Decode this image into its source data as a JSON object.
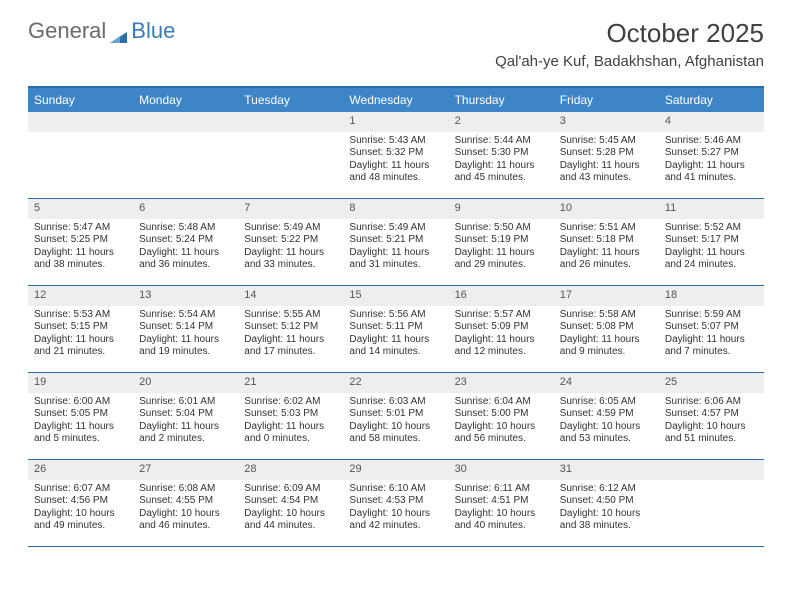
{
  "brand": {
    "part1": "General",
    "part2": "Blue"
  },
  "title": "October 2025",
  "location": "Qal'ah-ye Kuf, Badakhshan, Afghanistan",
  "colors": {
    "header_bg": "#3d85c6",
    "header_text": "#ffffff",
    "border": "#2a6ca8",
    "daynum_bg": "#eceeef",
    "text": "#333333",
    "brand_gray": "#6a6a6a",
    "brand_blue": "#3a7ab8"
  },
  "day_names": [
    "Sunday",
    "Monday",
    "Tuesday",
    "Wednesday",
    "Thursday",
    "Friday",
    "Saturday"
  ],
  "weeks": [
    [
      {
        "empty": true
      },
      {
        "empty": true
      },
      {
        "empty": true
      },
      {
        "n": "1",
        "sr": "5:43 AM",
        "ss": "5:32 PM",
        "dl": "11 hours and 48 minutes."
      },
      {
        "n": "2",
        "sr": "5:44 AM",
        "ss": "5:30 PM",
        "dl": "11 hours and 45 minutes."
      },
      {
        "n": "3",
        "sr": "5:45 AM",
        "ss": "5:28 PM",
        "dl": "11 hours and 43 minutes."
      },
      {
        "n": "4",
        "sr": "5:46 AM",
        "ss": "5:27 PM",
        "dl": "11 hours and 41 minutes."
      }
    ],
    [
      {
        "n": "5",
        "sr": "5:47 AM",
        "ss": "5:25 PM",
        "dl": "11 hours and 38 minutes."
      },
      {
        "n": "6",
        "sr": "5:48 AM",
        "ss": "5:24 PM",
        "dl": "11 hours and 36 minutes."
      },
      {
        "n": "7",
        "sr": "5:49 AM",
        "ss": "5:22 PM",
        "dl": "11 hours and 33 minutes."
      },
      {
        "n": "8",
        "sr": "5:49 AM",
        "ss": "5:21 PM",
        "dl": "11 hours and 31 minutes."
      },
      {
        "n": "9",
        "sr": "5:50 AM",
        "ss": "5:19 PM",
        "dl": "11 hours and 29 minutes."
      },
      {
        "n": "10",
        "sr": "5:51 AM",
        "ss": "5:18 PM",
        "dl": "11 hours and 26 minutes."
      },
      {
        "n": "11",
        "sr": "5:52 AM",
        "ss": "5:17 PM",
        "dl": "11 hours and 24 minutes."
      }
    ],
    [
      {
        "n": "12",
        "sr": "5:53 AM",
        "ss": "5:15 PM",
        "dl": "11 hours and 21 minutes."
      },
      {
        "n": "13",
        "sr": "5:54 AM",
        "ss": "5:14 PM",
        "dl": "11 hours and 19 minutes."
      },
      {
        "n": "14",
        "sr": "5:55 AM",
        "ss": "5:12 PM",
        "dl": "11 hours and 17 minutes."
      },
      {
        "n": "15",
        "sr": "5:56 AM",
        "ss": "5:11 PM",
        "dl": "11 hours and 14 minutes."
      },
      {
        "n": "16",
        "sr": "5:57 AM",
        "ss": "5:09 PM",
        "dl": "11 hours and 12 minutes."
      },
      {
        "n": "17",
        "sr": "5:58 AM",
        "ss": "5:08 PM",
        "dl": "11 hours and 9 minutes."
      },
      {
        "n": "18",
        "sr": "5:59 AM",
        "ss": "5:07 PM",
        "dl": "11 hours and 7 minutes."
      }
    ],
    [
      {
        "n": "19",
        "sr": "6:00 AM",
        "ss": "5:05 PM",
        "dl": "11 hours and 5 minutes."
      },
      {
        "n": "20",
        "sr": "6:01 AM",
        "ss": "5:04 PM",
        "dl": "11 hours and 2 minutes."
      },
      {
        "n": "21",
        "sr": "6:02 AM",
        "ss": "5:03 PM",
        "dl": "11 hours and 0 minutes."
      },
      {
        "n": "22",
        "sr": "6:03 AM",
        "ss": "5:01 PM",
        "dl": "10 hours and 58 minutes."
      },
      {
        "n": "23",
        "sr": "6:04 AM",
        "ss": "5:00 PM",
        "dl": "10 hours and 56 minutes."
      },
      {
        "n": "24",
        "sr": "6:05 AM",
        "ss": "4:59 PM",
        "dl": "10 hours and 53 minutes."
      },
      {
        "n": "25",
        "sr": "6:06 AM",
        "ss": "4:57 PM",
        "dl": "10 hours and 51 minutes."
      }
    ],
    [
      {
        "n": "26",
        "sr": "6:07 AM",
        "ss": "4:56 PM",
        "dl": "10 hours and 49 minutes."
      },
      {
        "n": "27",
        "sr": "6:08 AM",
        "ss": "4:55 PM",
        "dl": "10 hours and 46 minutes."
      },
      {
        "n": "28",
        "sr": "6:09 AM",
        "ss": "4:54 PM",
        "dl": "10 hours and 44 minutes."
      },
      {
        "n": "29",
        "sr": "6:10 AM",
        "ss": "4:53 PM",
        "dl": "10 hours and 42 minutes."
      },
      {
        "n": "30",
        "sr": "6:11 AM",
        "ss": "4:51 PM",
        "dl": "10 hours and 40 minutes."
      },
      {
        "n": "31",
        "sr": "6:12 AM",
        "ss": "4:50 PM",
        "dl": "10 hours and 38 minutes."
      },
      {
        "empty": true
      }
    ]
  ],
  "labels": {
    "sunrise": "Sunrise:",
    "sunset": "Sunset:",
    "daylight": "Daylight:"
  }
}
